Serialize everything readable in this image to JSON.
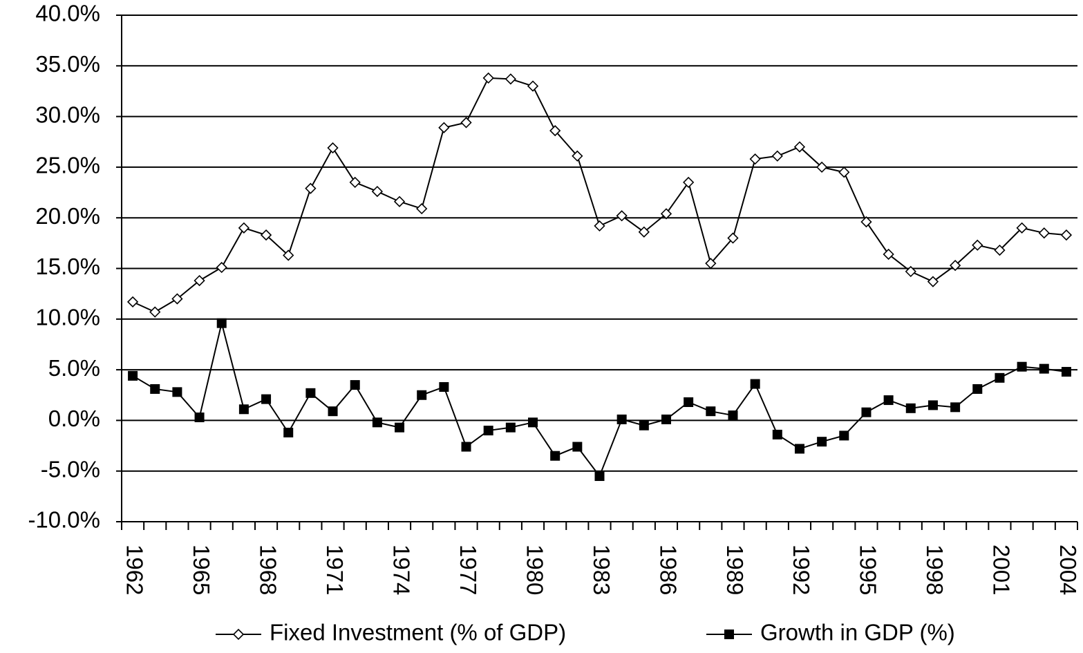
{
  "chart_data": {
    "type": "line",
    "categories": [
      "1962",
      null,
      null,
      "1965",
      null,
      null,
      "1968",
      null,
      null,
      "1971",
      null,
      null,
      "1974",
      null,
      null,
      "1977",
      null,
      null,
      "1980",
      null,
      null,
      "1983",
      null,
      null,
      "1986",
      null,
      null,
      "1989",
      null,
      null,
      "1992",
      null,
      null,
      "1995",
      null,
      null,
      "1998",
      null,
      null,
      "2001",
      null,
      null,
      "2004"
    ],
    "series": [
      {
        "name": "Fixed Investment (% of GDP)",
        "color": "#000000",
        "marker": "diamond",
        "values": [
          11.7,
          10.7,
          12.0,
          13.8,
          15.1,
          19.0,
          18.3,
          16.3,
          22.9,
          26.9,
          23.5,
          22.6,
          21.6,
          20.9,
          28.9,
          29.4,
          33.8,
          33.7,
          33.0,
          28.6,
          26.1,
          19.2,
          20.2,
          18.6,
          20.4,
          23.5,
          15.5,
          18.0,
          25.8,
          26.1,
          27.0,
          25.0,
          24.5,
          19.6,
          16.4,
          14.7,
          13.7,
          15.3,
          17.3,
          16.8,
          19.0,
          18.5,
          18.3
        ]
      },
      {
        "name": "Growth in GDP (%)",
        "color": "#000000",
        "marker": "square",
        "values": [
          4.4,
          3.1,
          2.8,
          0.3,
          9.6,
          1.1,
          2.1,
          -1.2,
          2.7,
          0.9,
          3.5,
          -0.2,
          -0.7,
          2.5,
          3.3,
          -2.6,
          -1.0,
          -0.7,
          -0.2,
          -3.5,
          -2.6,
          -5.5,
          0.1,
          -0.5,
          0.1,
          1.8,
          0.9,
          0.5,
          3.6,
          -1.4,
          -2.8,
          -2.1,
          -1.5,
          0.8,
          2.0,
          1.2,
          1.5,
          1.3,
          3.1,
          4.2,
          5.3,
          5.1,
          4.8
        ]
      }
    ],
    "ylim": [
      -10,
      40
    ],
    "yticks": [
      {
        "value": -10,
        "label": "-10.0%"
      },
      {
        "value": -5,
        "label": "-5.0%"
      },
      {
        "value": 0,
        "label": "0.0%"
      },
      {
        "value": 5,
        "label": "5.0%"
      },
      {
        "value": 10,
        "label": "10.0%"
      },
      {
        "value": 15,
        "label": "15.0%"
      },
      {
        "value": 20,
        "label": "20.0%"
      },
      {
        "value": 25,
        "label": "25.0%"
      },
      {
        "value": 30,
        "label": "30.0%"
      },
      {
        "value": 35,
        "label": "35.0%"
      },
      {
        "value": 40,
        "label": "40.0%"
      }
    ],
    "grid": true,
    "legend": "bottom"
  }
}
